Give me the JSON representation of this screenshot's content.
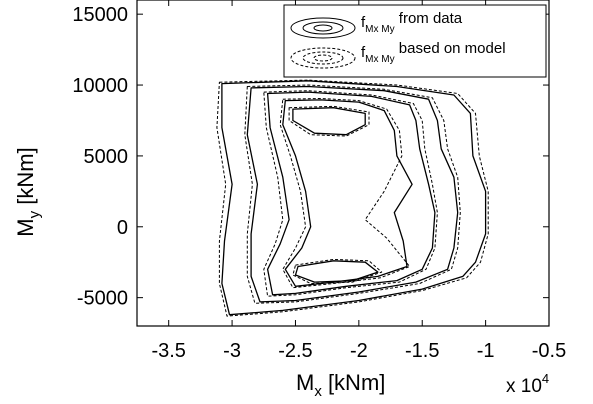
{
  "chart_data": {
    "type": "contour",
    "xlabel": {
      "main": "M",
      "sub": "x",
      "unit": " [kNm]"
    },
    "ylabel": {
      "main": "M",
      "sub": "y",
      "unit": " [kNm]"
    },
    "x_multiplier": {
      "text": "x 10",
      "exponent": "4"
    },
    "xlim": [
      -3.75,
      -0.5
    ],
    "ylim": [
      -7000,
      16000
    ],
    "xticks": [
      -3.5,
      -3,
      -2.5,
      -2,
      -1.5,
      -1,
      -0.5
    ],
    "xtick_labels": [
      "-3.5",
      "-3",
      "-2.5",
      "-2",
      "-1.5",
      "-1",
      "-0.5"
    ],
    "yticks": [
      -5000,
      0,
      5000,
      10000,
      15000
    ],
    "ytick_labels": [
      "-5000",
      "0",
      "5000",
      "10000",
      "15000"
    ],
    "legend_position": "top-right",
    "series": [
      {
        "name_main": "f",
        "name_sub": "Mx My",
        "name_rest": " from data",
        "line": "solid",
        "contours": [
          [
            [
              -3.08,
              10100
            ],
            [
              -2.4,
              10300
            ],
            [
              -1.7,
              9900
            ],
            [
              -1.25,
              9300
            ],
            [
              -1.12,
              8000
            ],
            [
              -1.1,
              5000
            ],
            [
              -1.0,
              2500
            ],
            [
              -1.0,
              -500
            ],
            [
              -1.08,
              -2500
            ],
            [
              -1.18,
              -3500
            ],
            [
              -1.5,
              -4400
            ],
            [
              -2.0,
              -5200
            ],
            [
              -2.6,
              -5900
            ],
            [
              -3.02,
              -6200
            ],
            [
              -3.08,
              -4000
            ],
            [
              -3.06,
              -1000
            ],
            [
              -3.0,
              3000
            ],
            [
              -3.08,
              7000
            ],
            [
              -3.08,
              10100
            ]
          ],
          [
            [
              -2.85,
              9800
            ],
            [
              -2.4,
              9900
            ],
            [
              -1.8,
              9600
            ],
            [
              -1.45,
              9000
            ],
            [
              -1.38,
              7500
            ],
            [
              -1.35,
              5500
            ],
            [
              -1.25,
              3500
            ],
            [
              -1.22,
              1000
            ],
            [
              -1.25,
              -1500
            ],
            [
              -1.3,
              -3000
            ],
            [
              -1.55,
              -3900
            ],
            [
              -2.0,
              -4600
            ],
            [
              -2.5,
              -5200
            ],
            [
              -2.78,
              -5300
            ],
            [
              -2.85,
              -3500
            ],
            [
              -2.85,
              -500
            ],
            [
              -2.8,
              3000
            ],
            [
              -2.88,
              6500
            ],
            [
              -2.85,
              9800
            ]
          ],
          [
            [
              -2.72,
              9400
            ],
            [
              -2.4,
              9500
            ],
            [
              -1.9,
              9200
            ],
            [
              -1.6,
              8600
            ],
            [
              -1.55,
              7500
            ],
            [
              -1.52,
              5500
            ],
            [
              -1.45,
              3000
            ],
            [
              -1.4,
              1000
            ],
            [
              -1.42,
              -1500
            ],
            [
              -1.5,
              -3000
            ],
            [
              -1.7,
              -3800
            ],
            [
              -2.1,
              -4200
            ],
            [
              -2.5,
              -4700
            ],
            [
              -2.68,
              -4800
            ],
            [
              -2.72,
              -3000
            ],
            [
              -2.62,
              -1200
            ],
            [
              -2.55,
              500
            ],
            [
              -2.6,
              3500
            ],
            [
              -2.7,
              7000
            ],
            [
              -2.72,
              9400
            ]
          ],
          [
            [
              -2.58,
              8900
            ],
            [
              -2.3,
              8950
            ],
            [
              -2.0,
              8800
            ],
            [
              -1.8,
              8200
            ],
            [
              -1.72,
              6800
            ],
            [
              -1.7,
              5000
            ],
            [
              -1.58,
              3000
            ],
            [
              -1.72,
              1000
            ],
            [
              -1.65,
              -1000
            ],
            [
              -1.62,
              -2800
            ],
            [
              -1.85,
              -3500
            ],
            [
              -2.2,
              -3900
            ],
            [
              -2.5,
              -4200
            ],
            [
              -2.58,
              -3000
            ],
            [
              -2.45,
              -1500
            ],
            [
              -2.38,
              0
            ],
            [
              -2.42,
              2500
            ],
            [
              -2.5,
              5000
            ],
            [
              -2.6,
              7200
            ],
            [
              -2.58,
              8900
            ]
          ],
          [
            [
              -2.52,
              8300
            ],
            [
              -2.2,
              8400
            ],
            [
              -1.95,
              8000
            ],
            [
              -1.95,
              7200
            ],
            [
              -2.1,
              6500
            ],
            [
              -2.35,
              6600
            ],
            [
              -2.52,
              7500
            ],
            [
              -2.52,
              8300
            ]
          ],
          [
            [
              -2.48,
              -2800
            ],
            [
              -2.2,
              -2400
            ],
            [
              -1.95,
              -2500
            ],
            [
              -1.85,
              -3200
            ],
            [
              -2.05,
              -3800
            ],
            [
              -2.35,
              -3900
            ],
            [
              -2.5,
              -3400
            ],
            [
              -2.48,
              -2800
            ]
          ]
        ]
      },
      {
        "name_main": "f",
        "name_sub": "Mx My",
        "name_rest": " based on model",
        "line": "dashed",
        "contours": [
          [
            [
              -3.1,
              10200
            ],
            [
              -2.4,
              10350
            ],
            [
              -1.7,
              10000
            ],
            [
              -1.22,
              9400
            ],
            [
              -1.08,
              8000
            ],
            [
              -1.05,
              5000
            ],
            [
              -0.98,
              2500
            ],
            [
              -0.98,
              -500
            ],
            [
              -1.04,
              -2500
            ],
            [
              -1.15,
              -3600
            ],
            [
              -1.5,
              -4500
            ],
            [
              -2.0,
              -5300
            ],
            [
              -2.6,
              -6000
            ],
            [
              -3.04,
              -6300
            ],
            [
              -3.1,
              -4000
            ],
            [
              -3.1,
              -1000
            ],
            [
              -3.05,
              3000
            ],
            [
              -3.12,
              7000
            ],
            [
              -3.1,
              10200
            ]
          ],
          [
            [
              -2.88,
              9900
            ],
            [
              -2.4,
              10000
            ],
            [
              -1.8,
              9700
            ],
            [
              -1.42,
              9100
            ],
            [
              -1.33,
              7500
            ],
            [
              -1.3,
              5500
            ],
            [
              -1.22,
              3500
            ],
            [
              -1.2,
              1000
            ],
            [
              -1.22,
              -1500
            ],
            [
              -1.27,
              -3000
            ],
            [
              -1.52,
              -4000
            ],
            [
              -2.0,
              -4700
            ],
            [
              -2.5,
              -5300
            ],
            [
              -2.82,
              -5400
            ],
            [
              -2.88,
              -3500
            ],
            [
              -2.88,
              -500
            ],
            [
              -2.84,
              3000
            ],
            [
              -2.9,
              6500
            ],
            [
              -2.88,
              9900
            ]
          ],
          [
            [
              -2.75,
              9500
            ],
            [
              -2.4,
              9600
            ],
            [
              -1.9,
              9300
            ],
            [
              -1.57,
              8700
            ],
            [
              -1.5,
              7500
            ],
            [
              -1.48,
              5500
            ],
            [
              -1.42,
              3000
            ],
            [
              -1.38,
              1000
            ],
            [
              -1.4,
              -1500
            ],
            [
              -1.47,
              -3000
            ],
            [
              -1.68,
              -3900
            ],
            [
              -2.1,
              -4300
            ],
            [
              -2.5,
              -4800
            ],
            [
              -2.72,
              -4900
            ],
            [
              -2.75,
              -3000
            ],
            [
              -2.66,
              -1200
            ],
            [
              -2.6,
              500
            ],
            [
              -2.64,
              3500
            ],
            [
              -2.73,
              7000
            ],
            [
              -2.75,
              9500
            ]
          ],
          [
            [
              -2.6,
              9000
            ],
            [
              -2.3,
              9050
            ],
            [
              -2.0,
              8900
            ],
            [
              -1.78,
              8300
            ],
            [
              -1.68,
              6800
            ],
            [
              -1.66,
              5000
            ],
            [
              -1.8,
              2500
            ],
            [
              -1.95,
              500
            ],
            [
              -1.78,
              -800
            ],
            [
              -1.6,
              -2800
            ],
            [
              -1.83,
              -3600
            ],
            [
              -2.2,
              -4000
            ],
            [
              -2.52,
              -4300
            ],
            [
              -2.6,
              -3000
            ],
            [
              -2.5,
              -1500
            ],
            [
              -2.42,
              0
            ],
            [
              -2.46,
              2500
            ],
            [
              -2.54,
              5000
            ],
            [
              -2.62,
              7200
            ],
            [
              -2.6,
              9000
            ]
          ],
          [
            [
              -2.55,
              8400
            ],
            [
              -2.2,
              8500
            ],
            [
              -1.92,
              8100
            ],
            [
              -1.92,
              7200
            ],
            [
              -2.1,
              6400
            ],
            [
              -2.38,
              6500
            ],
            [
              -2.55,
              7500
            ],
            [
              -2.55,
              8400
            ]
          ],
          [
            [
              -2.5,
              -2700
            ],
            [
              -2.2,
              -2300
            ],
            [
              -1.92,
              -2400
            ],
            [
              -1.82,
              -3200
            ],
            [
              -2.05,
              -3900
            ],
            [
              -2.38,
              -4000
            ],
            [
              -2.52,
              -3400
            ],
            [
              -2.5,
              -2700
            ]
          ]
        ]
      }
    ]
  }
}
